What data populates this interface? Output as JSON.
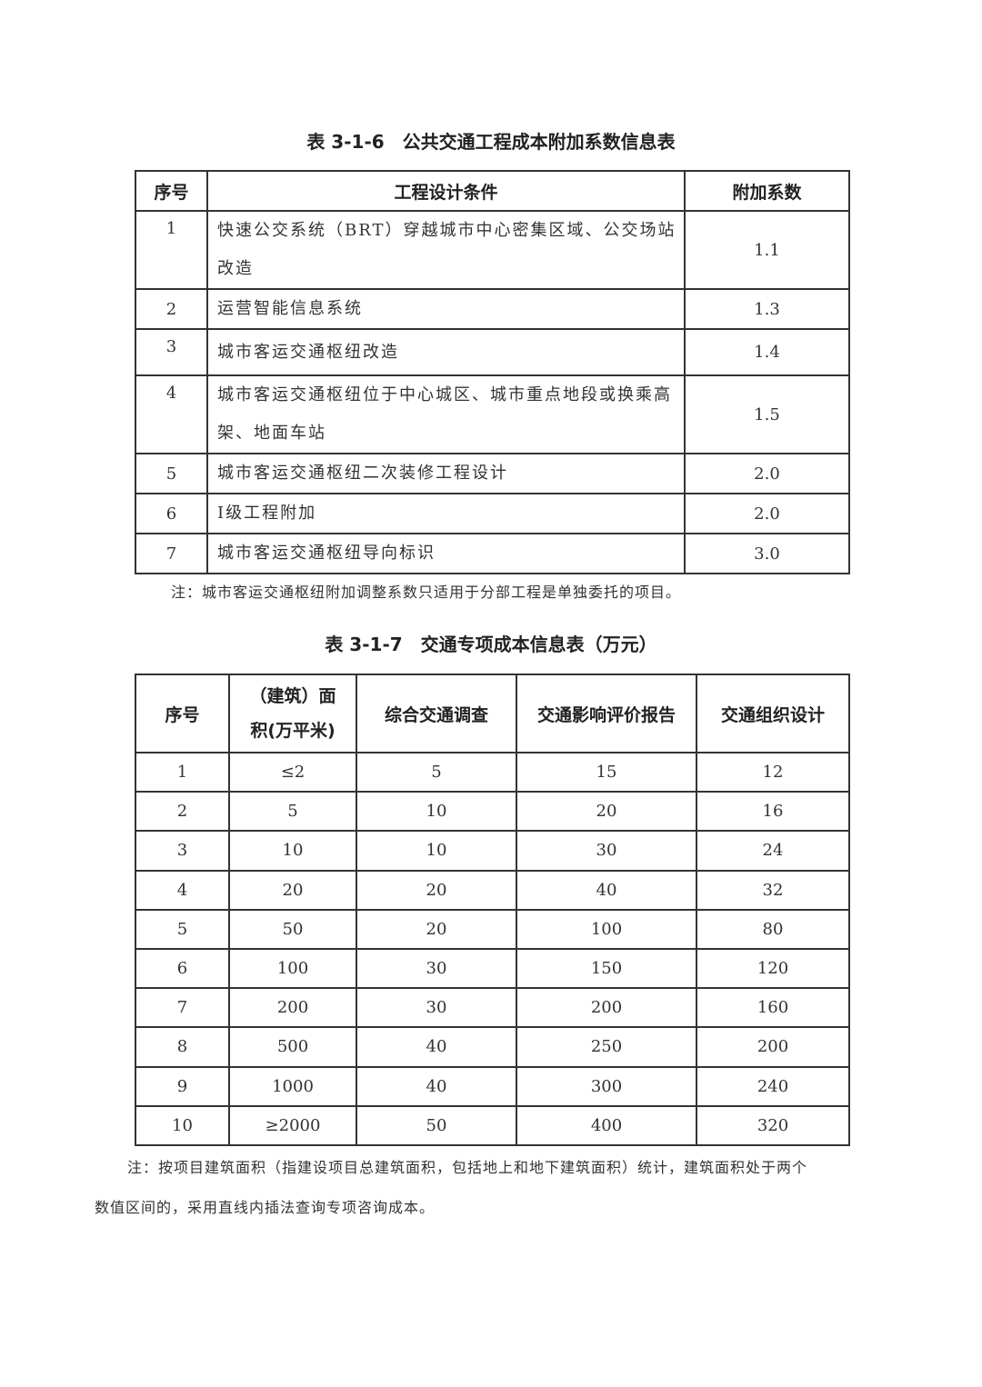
{
  "table1": {
    "title": "表 3-1-6　公共交通工程成本附加系数信息表",
    "headers": [
      "序号",
      "工程设计条件",
      "附加系数"
    ],
    "rows": [
      [
        "1",
        "快速公交系统（BRT）穿越城市中心密集区域、公交场站改造",
        "1.1"
      ],
      [
        "2",
        "运营智能信息系统",
        "1.3"
      ],
      [
        "3",
        "城市客运交通枢纽改造",
        "1.4"
      ],
      [
        "4",
        "城市客运交通枢纽位于中心城区、城市重点地段或换乘高架、地面车站",
        "1.5"
      ],
      [
        "5",
        "城市客运交通枢纽二次装修工程设计",
        "2.0"
      ],
      [
        "6",
        "Ⅰ级工程附加",
        "2.0"
      ],
      [
        "7",
        "城市客运交通枢纽导向标识",
        "3.0"
      ]
    ],
    "note": "注：城市客运交通枢纽附加调整系数只适用于分部工程是单独委托的项目。"
  },
  "table2": {
    "title": "表 3-1-7　交通专项成本信息表（万元）",
    "headers": [
      "序号",
      "（建筑）面积(万平米)",
      "综合交通调查",
      "交通影响评价报告",
      "交通组织设计"
    ],
    "rows": [
      [
        "1",
        "≤2",
        "5",
        "15",
        "12"
      ],
      [
        "2",
        "5",
        "10",
        "20",
        "16"
      ],
      [
        "3",
        "10",
        "10",
        "30",
        "24"
      ],
      [
        "4",
        "20",
        "20",
        "40",
        "32"
      ],
      [
        "5",
        "50",
        "20",
        "100",
        "80"
      ],
      [
        "6",
        "100",
        "30",
        "150",
        "120"
      ],
      [
        "7",
        "200",
        "30",
        "200",
        "160"
      ],
      [
        "8",
        "500",
        "40",
        "250",
        "200"
      ],
      [
        "9",
        "1000",
        "40",
        "300",
        "240"
      ],
      [
        "10",
        "≥2000",
        "50",
        "400",
        "320"
      ]
    ],
    "note_line1": "注：按项目建筑面积（指建设项目总建筑面积，包括地上和地下建筑面积）统计，建筑面积处于两个",
    "note_line2": "数值区间的，采用直线内插法查询专项咨询成本。"
  }
}
